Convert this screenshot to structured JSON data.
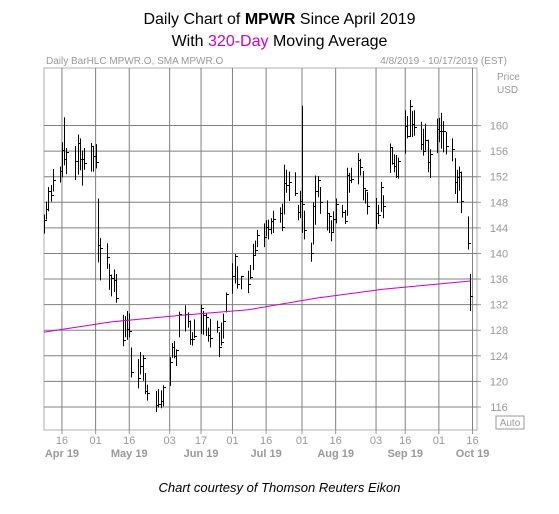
{
  "title": {
    "line1_prefix": "Daily Chart of ",
    "line1_ticker": "MPWR",
    "line1_suffix": " Since April 2019",
    "line2_prefix": "With ",
    "line2_highlight": "320-Day",
    "line2_suffix": " Moving Average"
  },
  "chart_header": {
    "left": "Daily BarHLC MPWR.O, SMA MPWR.O",
    "right": "4/8/2019 - 10/17/2019 (EST)"
  },
  "axis_unit": [
    "Price",
    "USD"
  ],
  "auto_label": "Auto",
  "caption": "Chart courtesy of Thomson Reuters Eikon",
  "colors": {
    "accent": "#cc00cc",
    "bars": "#000000",
    "grid": "#808080",
    "axis_text": "#999999"
  },
  "chart_data": {
    "type": "bar",
    "style": "OHLC bars (high-low-close)",
    "ylim": [
      112.4,
      169
    ],
    "yticks": [
      116,
      120,
      124,
      128,
      132,
      136,
      140,
      144,
      148,
      152,
      156,
      160
    ],
    "xlim": [
      "2019-04-08",
      "2019-10-18"
    ],
    "day_ticks": [
      {
        "label": "16",
        "date": "2019-04-16"
      },
      {
        "label": "01",
        "date": "2019-05-01"
      },
      {
        "label": "16",
        "date": "2019-05-16"
      },
      {
        "label": "03",
        "date": "2019-06-03"
      },
      {
        "label": "17",
        "date": "2019-06-17"
      },
      {
        "label": "01",
        "date": "2019-07-01"
      },
      {
        "label": "16",
        "date": "2019-07-16"
      },
      {
        "label": "01",
        "date": "2019-08-01"
      },
      {
        "label": "16",
        "date": "2019-08-16"
      },
      {
        "label": "03",
        "date": "2019-09-03"
      },
      {
        "label": "16",
        "date": "2019-09-16"
      },
      {
        "label": "01",
        "date": "2019-10-01"
      },
      {
        "label": "16",
        "date": "2019-10-16"
      }
    ],
    "month_labels": [
      {
        "label": "Apr 19",
        "date": "2019-04-16"
      },
      {
        "label": "May 19",
        "date": "2019-05-16"
      },
      {
        "label": "Jun 19",
        "date": "2019-06-17"
      },
      {
        "label": "Jul 19",
        "date": "2019-07-16"
      },
      {
        "label": "Aug 19",
        "date": "2019-08-16"
      },
      {
        "label": "Sep 19",
        "date": "2019-09-16"
      },
      {
        "label": "Oct 19",
        "date": "2019-10-16"
      }
    ],
    "price_series": {
      "data": [
        [
          "2019-04-08",
          146.1,
          143.1,
          145.3
        ],
        [
          "2019-04-09",
          148.1,
          145.3,
          146.9
        ],
        [
          "2019-04-10",
          150.4,
          146.6,
          149.7
        ],
        [
          "2019-04-11",
          150.7,
          148.1,
          149.1
        ],
        [
          "2019-04-12",
          153.2,
          149.7,
          151.5
        ],
        [
          "2019-04-15",
          153.6,
          151.1,
          152.9
        ],
        [
          "2019-04-16",
          157.4,
          151.9,
          156.2
        ],
        [
          "2019-04-17",
          161.3,
          153.8,
          154.8
        ],
        [
          "2019-04-18",
          156.5,
          152.4,
          155.8
        ],
        [
          "2019-04-22",
          156.8,
          151.5,
          154.4
        ],
        [
          "2019-04-23",
          158.6,
          152.3,
          157.3
        ],
        [
          "2019-04-24",
          158.0,
          153.0,
          154.8
        ],
        [
          "2019-04-25",
          156.1,
          150.6,
          154.7
        ],
        [
          "2019-04-26",
          156.5,
          153.1,
          154.1
        ],
        [
          "2019-04-29",
          157.3,
          152.8,
          156.8
        ],
        [
          "2019-04-30",
          156.8,
          152.8,
          155.2
        ],
        [
          "2019-05-01",
          157.1,
          153.3,
          154.3
        ],
        [
          "2019-05-02",
          148.6,
          138.6,
          141.4
        ],
        [
          "2019-05-03",
          142.4,
          135.8,
          140.8
        ],
        [
          "2019-05-06",
          141.6,
          137.6,
          139.5
        ],
        [
          "2019-05-07",
          138.4,
          134.3,
          136.7
        ],
        [
          "2019-05-08",
          136.7,
          133.3,
          136.1
        ],
        [
          "2019-05-09",
          137.5,
          134.0,
          135.9
        ],
        [
          "2019-05-10",
          136.8,
          132.3,
          133.0
        ],
        [
          "2019-05-13",
          130.4,
          125.5,
          126.5
        ],
        [
          "2019-05-14",
          130.2,
          126.9,
          129.6
        ],
        [
          "2019-05-15",
          131.0,
          126.5,
          128.2
        ],
        [
          "2019-05-16",
          130.6,
          126.9,
          127.9
        ],
        [
          "2019-05-17",
          125.3,
          120.6,
          121.4
        ],
        [
          "2019-05-20",
          123.5,
          118.9,
          120.6
        ],
        [
          "2019-05-21",
          124.6,
          121.1,
          122.4
        ],
        [
          "2019-05-22",
          124.1,
          120.1,
          123.7
        ],
        [
          "2019-05-23",
          121.3,
          118.0,
          118.5
        ],
        [
          "2019-05-24",
          119.5,
          117.0,
          118.2
        ],
        [
          "2019-05-28",
          118.5,
          115.2,
          116.3
        ],
        [
          "2019-05-29",
          118.8,
          115.9,
          116.4
        ],
        [
          "2019-05-30",
          118.6,
          115.8,
          117.0
        ],
        [
          "2019-05-31",
          119.4,
          116.1,
          119.2
        ],
        [
          "2019-06-03",
          123.8,
          119.3,
          123.0
        ],
        [
          "2019-06-04",
          126.0,
          123.7,
          125.4
        ],
        [
          "2019-06-05",
          126.3,
          123.6,
          124.0
        ],
        [
          "2019-06-06",
          125.0,
          122.4,
          124.9
        ],
        [
          "2019-06-07",
          130.9,
          126.9,
          130.5
        ],
        [
          "2019-06-10",
          131.9,
          127.8,
          130.5
        ],
        [
          "2019-06-11",
          130.8,
          128.4,
          129.4
        ],
        [
          "2019-06-12",
          129.5,
          125.7,
          126.6
        ],
        [
          "2019-06-13",
          127.7,
          125.6,
          126.6
        ],
        [
          "2019-06-14",
          129.7,
          126.8,
          127.1
        ],
        [
          "2019-06-17",
          132.0,
          127.4,
          131.4
        ],
        [
          "2019-06-18",
          131.0,
          127.3,
          130.4
        ],
        [
          "2019-06-19",
          130.6,
          127.1,
          130.1
        ],
        [
          "2019-06-20",
          128.4,
          126.2,
          127.3
        ],
        [
          "2019-06-21",
          129.8,
          125.3,
          126.8
        ],
        [
          "2019-06-24",
          129.5,
          127.6,
          128.5
        ],
        [
          "2019-06-25",
          127.7,
          123.8,
          125.4
        ],
        [
          "2019-06-26",
          129.2,
          125.6,
          126.2
        ],
        [
          "2019-06-27",
          130.6,
          126.7,
          129.5
        ],
        [
          "2019-06-28",
          133.9,
          130.8,
          133.6
        ],
        [
          "2019-07-01",
          138.5,
          133.7,
          136.5
        ],
        [
          "2019-07-02",
          139.9,
          135.3,
          139.6
        ],
        [
          "2019-07-03",
          138.0,
          134.5,
          135.2
        ],
        [
          "2019-07-05",
          136.5,
          134.4,
          136.5
        ],
        [
          "2019-07-08",
          137.3,
          133.8,
          135.2
        ],
        [
          "2019-07-09",
          138.2,
          136.0,
          136.3
        ],
        [
          "2019-07-10",
          141.5,
          137.4,
          139.8
        ],
        [
          "2019-07-11",
          142.0,
          139.8,
          140.6
        ],
        [
          "2019-07-12",
          143.7,
          141.0,
          142.9
        ],
        [
          "2019-07-15",
          144.7,
          141.0,
          142.6
        ],
        [
          "2019-07-16",
          145.2,
          142.7,
          144.1
        ],
        [
          "2019-07-17",
          145.3,
          142.2,
          143.8
        ],
        [
          "2019-07-18",
          145.5,
          143.0,
          145.0
        ],
        [
          "2019-07-19",
          146.7,
          143.2,
          145.4
        ],
        [
          "2019-07-22",
          147.2,
          144.8,
          146.3
        ],
        [
          "2019-07-23",
          147.8,
          143.5,
          144.2
        ],
        [
          "2019-07-24",
          153.9,
          146.1,
          151.0
        ],
        [
          "2019-07-25",
          153.1,
          149.5,
          150.7
        ],
        [
          "2019-07-26",
          152.8,
          148.2,
          151.2
        ],
        [
          "2019-07-29",
          152.7,
          149.0,
          149.4
        ],
        [
          "2019-07-30",
          147.6,
          145.2,
          146.5
        ],
        [
          "2019-07-31",
          149.8,
          145.5,
          148.2
        ],
        [
          "2019-08-01",
          163.1,
          143.2,
          147.7
        ],
        [
          "2019-08-02",
          146.7,
          142.2,
          143.6
        ],
        [
          "2019-08-05",
          141.7,
          138.7,
          140.0
        ],
        [
          "2019-08-06",
          148.0,
          141.4,
          147.4
        ],
        [
          "2019-08-07",
          152.2,
          144.5,
          149.7
        ],
        [
          "2019-08-08",
          152.1,
          148.8,
          151.5
        ],
        [
          "2019-08-09",
          150.4,
          146.2,
          148.0
        ],
        [
          "2019-08-12",
          148.3,
          143.6,
          146.4
        ],
        [
          "2019-08-13",
          146.2,
          143.2,
          145.9
        ],
        [
          "2019-08-14",
          145.2,
          141.9,
          143.3
        ],
        [
          "2019-08-15",
          146.6,
          143.4,
          145.4
        ],
        [
          "2019-08-16",
          148.6,
          144.7,
          147.7
        ],
        [
          "2019-08-19",
          147.6,
          145.6,
          146.5
        ],
        [
          "2019-08-20",
          146.8,
          144.6,
          145.1
        ],
        [
          "2019-08-21",
          153.4,
          145.9,
          152.2
        ],
        [
          "2019-08-22",
          152.6,
          149.5,
          151.5
        ],
        [
          "2019-08-23",
          153.4,
          151.0,
          151.7
        ],
        [
          "2019-08-26",
          155.7,
          150.8,
          154.6
        ],
        [
          "2019-08-27",
          154.8,
          152.2,
          153.5
        ],
        [
          "2019-08-28",
          152.9,
          148.3,
          150.2
        ],
        [
          "2019-08-29",
          150.0,
          147.8,
          149.9
        ],
        [
          "2019-08-30",
          149.6,
          146.1,
          147.4
        ],
        [
          "2019-09-03",
          148.7,
          143.8,
          146.4
        ],
        [
          "2019-09-04",
          147.6,
          144.6,
          146.0
        ],
        [
          "2019-09-05",
          151.2,
          146.5,
          150.4
        ],
        [
          "2019-09-06",
          149.1,
          145.5,
          147.5
        ],
        [
          "2019-09-09",
          157.2,
          152.6,
          156.6
        ],
        [
          "2019-09-10",
          156.6,
          153.9,
          154.2
        ],
        [
          "2019-09-11",
          155.5,
          152.7,
          153.7
        ],
        [
          "2019-09-12",
          155.4,
          151.8,
          152.1
        ],
        [
          "2019-09-13",
          155.0,
          151.7,
          154.4
        ],
        [
          "2019-09-16",
          162.4,
          155.6,
          160.0
        ],
        [
          "2019-09-17",
          161.5,
          158.0,
          158.4
        ],
        [
          "2019-09-18",
          164.0,
          158.2,
          163.1
        ],
        [
          "2019-09-19",
          162.3,
          158.2,
          160.2
        ],
        [
          "2019-09-20",
          162.4,
          158.4,
          159.7
        ],
        [
          "2019-09-23",
          160.6,
          156.2,
          157.1
        ],
        [
          "2019-09-24",
          159.5,
          155.3,
          156.0
        ],
        [
          "2019-09-25",
          160.3,
          156.1,
          157.7
        ],
        [
          "2019-09-26",
          157.8,
          152.7,
          154.3
        ],
        [
          "2019-09-27",
          156.3,
          151.8,
          155.5
        ],
        [
          "2019-09-30",
          161.1,
          155.7,
          159.5
        ],
        [
          "2019-10-01",
          161.2,
          157.4,
          159.1
        ],
        [
          "2019-10-02",
          162.0,
          156.4,
          159.1
        ],
        [
          "2019-10-03",
          160.7,
          155.8,
          159.1
        ],
        [
          "2019-10-04",
          159.0,
          155.5,
          156.8
        ],
        [
          "2019-10-07",
          158.0,
          154.4,
          156.3
        ],
        [
          "2019-10-08",
          154.9,
          149.3,
          151.1
        ],
        [
          "2019-10-09",
          153.1,
          147.9,
          151.9
        ],
        [
          "2019-10-10",
          153.6,
          149.8,
          152.7
        ],
        [
          "2019-10-11",
          152.8,
          146.3,
          148.2
        ],
        [
          "2019-10-14",
          145.8,
          140.6,
          141.7
        ],
        [
          "2019-10-15",
          136.8,
          131.0,
          133.3
        ]
      ]
    },
    "sma_series": {
      "name": "SMA MPWR.O 320-Day",
      "color": "#cc00cc",
      "x": [
        "2019-04-08",
        "2019-05-08",
        "2019-06-07",
        "2019-07-08",
        "2019-08-07",
        "2019-09-06",
        "2019-10-15"
      ],
      "y": [
        127.7,
        129.3,
        130.3,
        131.2,
        133.0,
        134.4,
        135.7
      ]
    }
  }
}
